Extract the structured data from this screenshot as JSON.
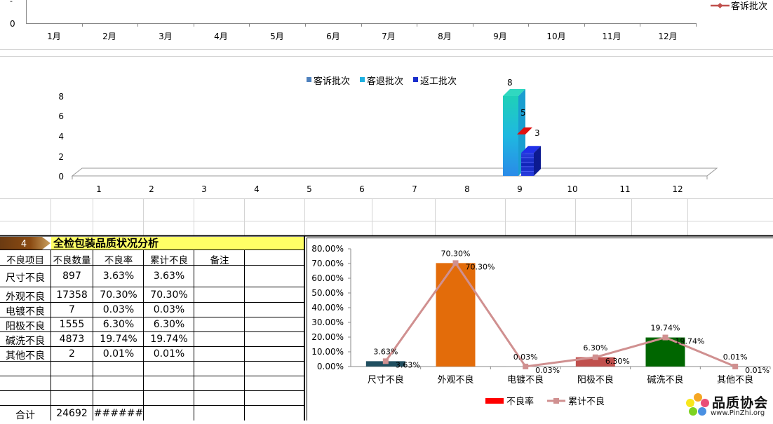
{
  "top_chart": {
    "y_ticks": [
      "0"
    ],
    "months": [
      "1月",
      "2月",
      "3月",
      "4月",
      "5月",
      "6月",
      "7月",
      "8月",
      "9月",
      "10月",
      "11月",
      "12月"
    ],
    "legend": "客诉批次"
  },
  "bar3d_chart": {
    "chart_data": {
      "type": "bar",
      "categories": [
        "1",
        "2",
        "3",
        "4",
        "5",
        "6",
        "7",
        "8",
        "9",
        "10",
        "11",
        "12"
      ],
      "y_ticks": [
        "0",
        "2",
        "4",
        "6",
        "8"
      ],
      "ylim": [
        0,
        8
      ],
      "series": [
        {
          "name": "客诉批次",
          "color": "#4f81bd",
          "values": [
            0,
            0,
            0,
            0,
            0,
            0,
            0,
            0,
            0,
            0,
            0,
            0
          ]
        },
        {
          "name": "客退批次",
          "color": "#1fb0e0",
          "values": [
            0,
            0,
            0,
            0,
            0,
            0,
            0,
            0,
            8,
            0,
            0,
            0
          ]
        },
        {
          "name": "返工批次",
          "color": "#1a2ecc",
          "values": [
            0,
            0,
            0,
            0,
            0,
            0,
            0,
            0,
            3,
            0,
            0,
            0
          ]
        }
      ],
      "data_labels": [
        "8",
        "5",
        "3"
      ]
    }
  },
  "table": {
    "section_no": "4",
    "title": "全检包装品质状况分析",
    "headers": [
      "不良项目",
      "不良数量",
      "不良率",
      "累计不良",
      "备注"
    ],
    "rows": [
      [
        "尺寸不良",
        "897",
        "3.63%",
        "3.63%",
        ""
      ],
      [
        "外观不良",
        "17358",
        "70.30%",
        "70.30%",
        ""
      ],
      [
        "电镀不良",
        "7",
        "0.03%",
        "0.03%",
        ""
      ],
      [
        "阳极不良",
        "1555",
        "6.30%",
        "6.30%",
        ""
      ],
      [
        "碱洗不良",
        "4873",
        "19.74%",
        "19.74%",
        ""
      ],
      [
        "其他不良",
        "2",
        "0.01%",
        "0.01%",
        ""
      ]
    ],
    "total_label": "合计",
    "total_qty": "24692",
    "total_rate": "######"
  },
  "pareto_chart": {
    "chart_data": {
      "type": "bar",
      "categories": [
        "尺寸不良",
        "外观不良",
        "电镀不良",
        "阳极不良",
        "碱洗不良",
        "其他不良"
      ],
      "y_ticks": [
        "0.00%",
        "10.00%",
        "20.00%",
        "30.00%",
        "40.00%",
        "50.00%",
        "60.00%",
        "70.00%",
        "80.00%"
      ],
      "ylim": [
        0,
        80
      ],
      "series": [
        {
          "name": "不良率",
          "values": [
            3.63,
            70.3,
            0.03,
            6.3,
            19.74,
            0.01
          ],
          "labels": [
            "3.63%",
            "70.30%",
            "0.03%",
            "6.30%",
            "19.74%",
            "0.01%"
          ],
          "colors": [
            "#1f4e5f",
            "#e36c0a",
            "#d9d9d9",
            "#c0504d",
            "#006600",
            "#bfbfbf"
          ]
        },
        {
          "name": "累计不良",
          "values": [
            3.63,
            70.3,
            0.03,
            6.3,
            19.74,
            0.01
          ],
          "labels": [
            "3.63%",
            "70.30%",
            "0.03%",
            "6.30%",
            "19.74%",
            "0.01%"
          ],
          "color": "#d09090"
        }
      ],
      "legend_colors": [
        "#ff0000",
        "#d09090"
      ]
    }
  },
  "logo": {
    "name": "品质协会",
    "url": "www.PinZhi.org"
  }
}
